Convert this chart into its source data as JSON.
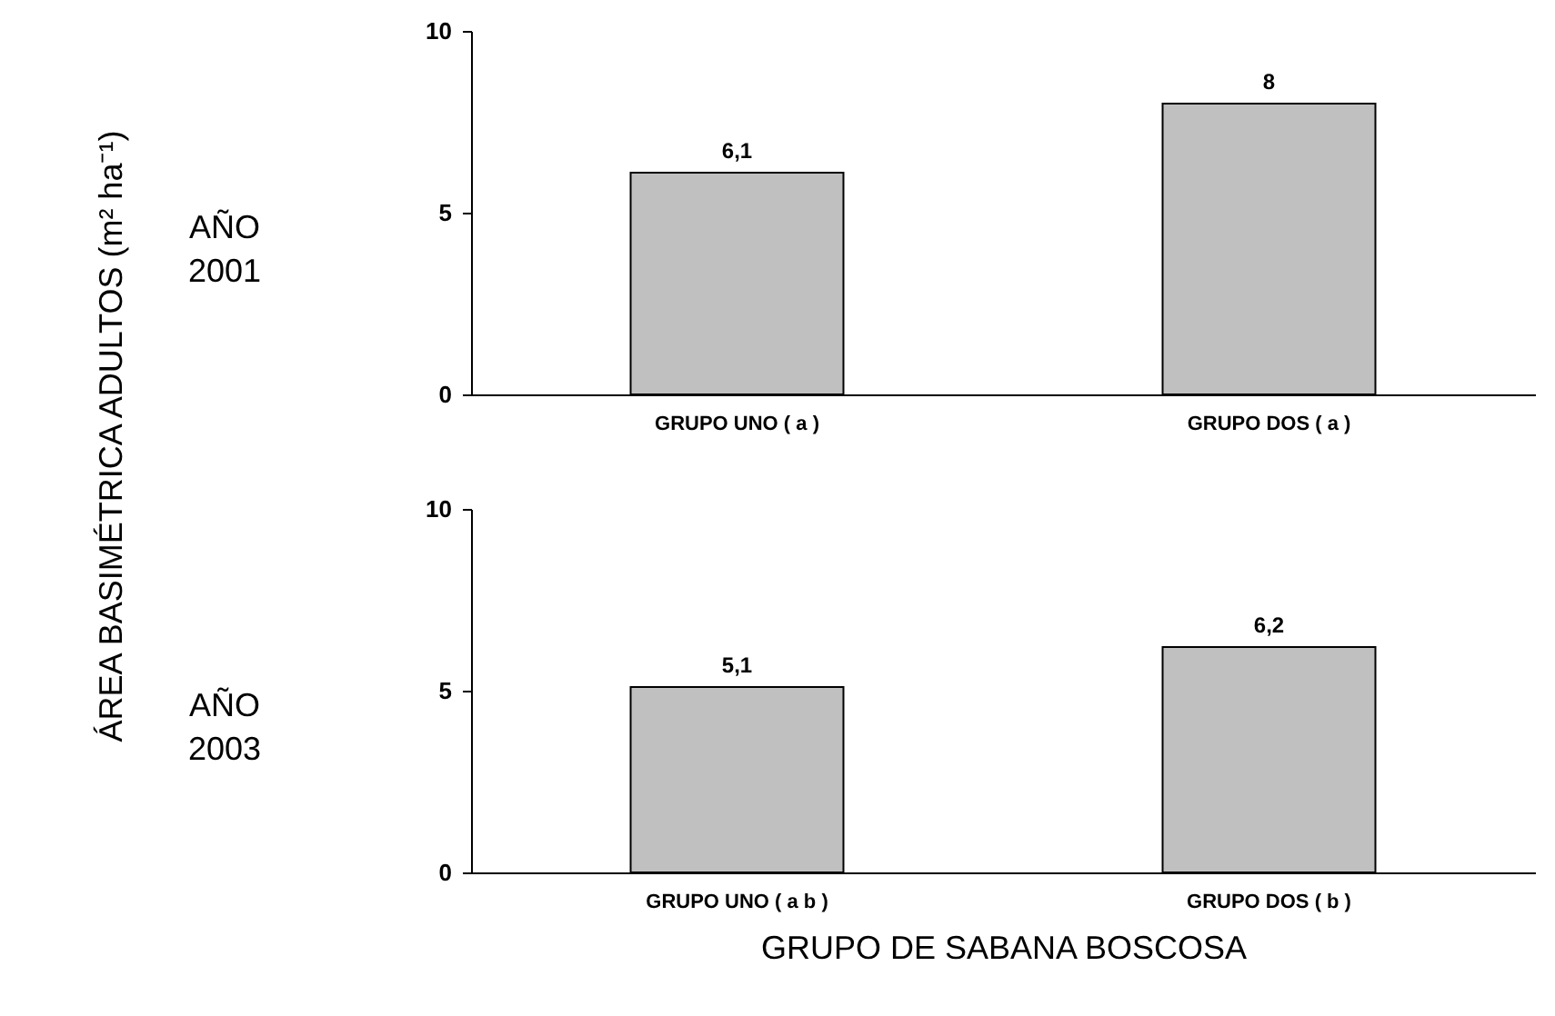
{
  "chart_data": [
    {
      "type": "bar",
      "title": "AÑO 2001",
      "ylabel": "ÁREA BASIMÉTRICA ADULTOS (m² ha⁻¹)",
      "categories": [
        "GRUPO UNO ( a )",
        "GRUPO DOS ( a )"
      ],
      "values": [
        6.1,
        8
      ],
      "value_labels": [
        "6,1",
        "8"
      ],
      "color": "#c0c0c0",
      "ylim": [
        0,
        10
      ],
      "yticks": [
        0,
        5,
        10
      ]
    },
    {
      "type": "bar",
      "title": "AÑO 2003",
      "xlabel": "GRUPO DE SABANA BOSCOSA",
      "categories": [
        "GRUPO UNO ( a b )",
        "GRUPO DOS ( b )"
      ],
      "values": [
        5.1,
        6.2
      ],
      "value_labels": [
        "5,1",
        "6,2"
      ],
      "color": "#c0c0c0",
      "ylim": [
        0,
        10
      ],
      "yticks": [
        0,
        5,
        10
      ]
    }
  ]
}
